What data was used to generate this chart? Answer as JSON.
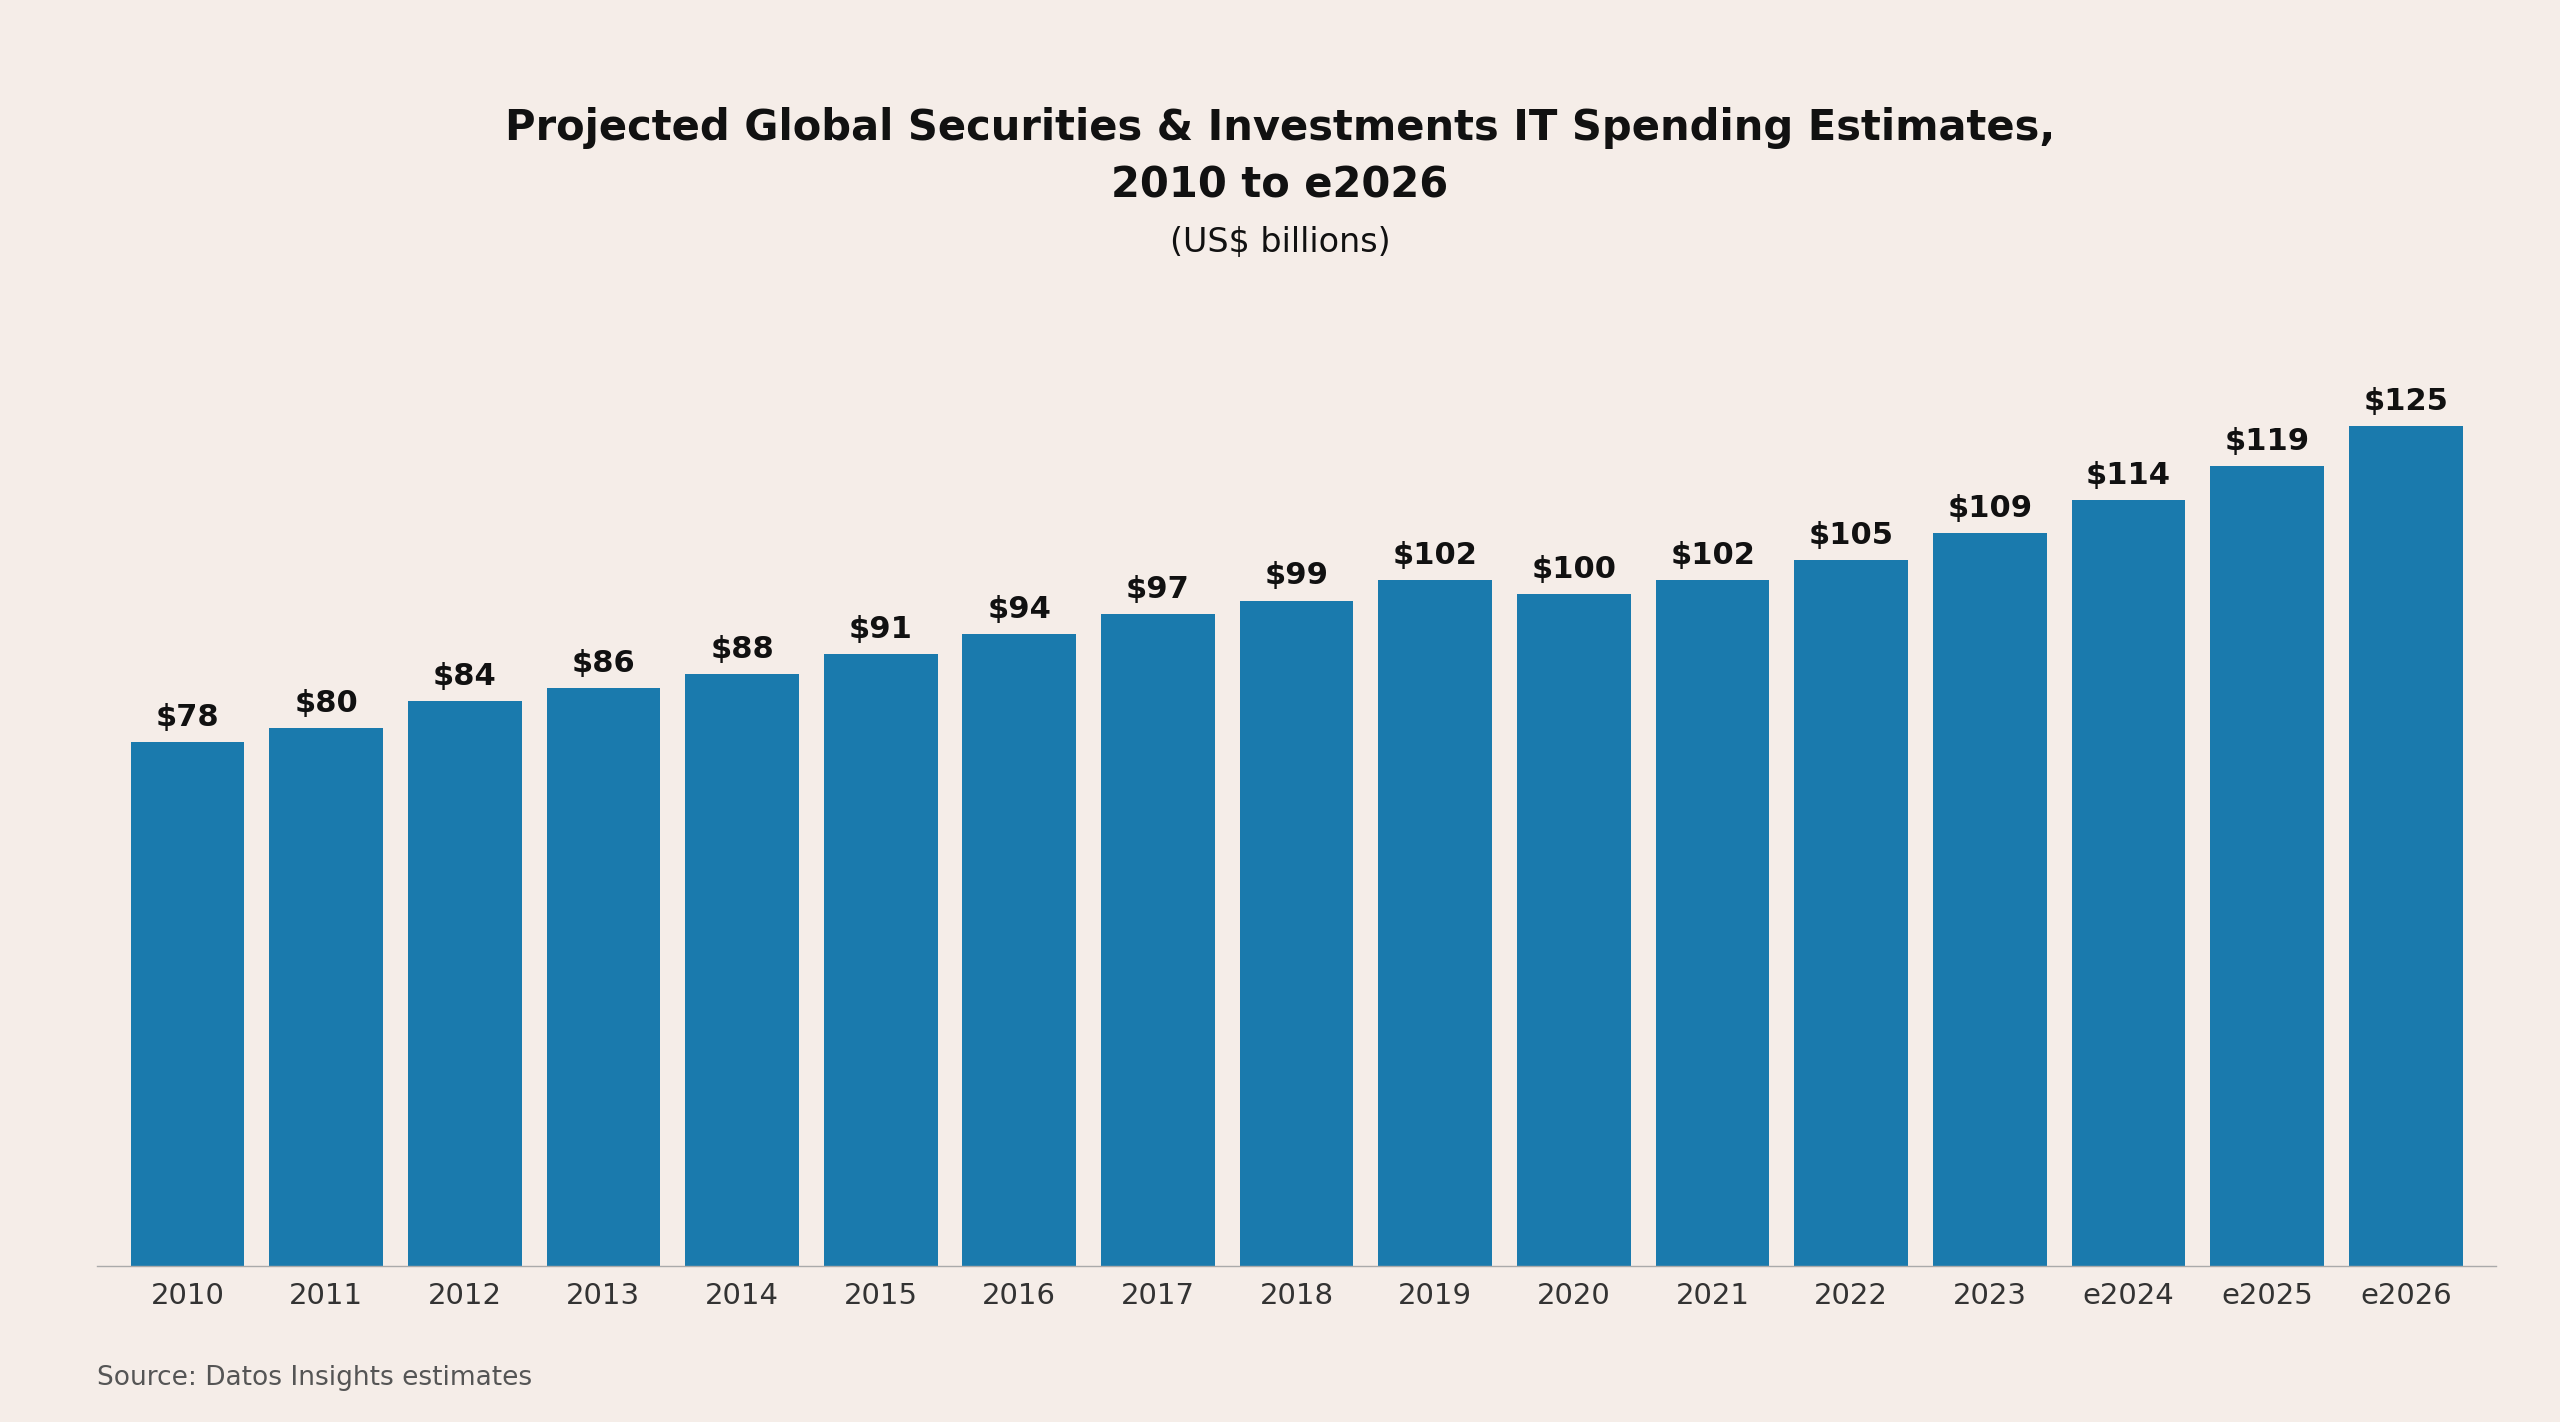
{
  "categories": [
    "2010",
    "2011",
    "2012",
    "2013",
    "2014",
    "2015",
    "2016",
    "2017",
    "2018",
    "2019",
    "2020",
    "2021",
    "2022",
    "2023",
    "e2024",
    "e2025",
    "e2026"
  ],
  "values": [
    78,
    80,
    84,
    86,
    88,
    91,
    94,
    97,
    99,
    102,
    100,
    102,
    105,
    109,
    114,
    119,
    125
  ],
  "bar_color": "#1a7aad",
  "background_color": "#f5ede8",
  "title_line1": "Projected Global Securities & Investments IT Spending Estimates,",
  "title_line2": "2010 to e2026",
  "subtitle": "(US$ billions)",
  "source_text": "Source: Datos Insights estimates",
  "title_fontsize": 30,
  "subtitle_fontsize": 24,
  "label_fontsize": 22,
  "tick_fontsize": 21,
  "source_fontsize": 19,
  "ylim": [
    0,
    145
  ],
  "bar_width": 0.82,
  "title_color": "#111111",
  "tick_color": "#333333",
  "source_color": "#555555",
  "bottom_spine_color": "#aaaaaa"
}
